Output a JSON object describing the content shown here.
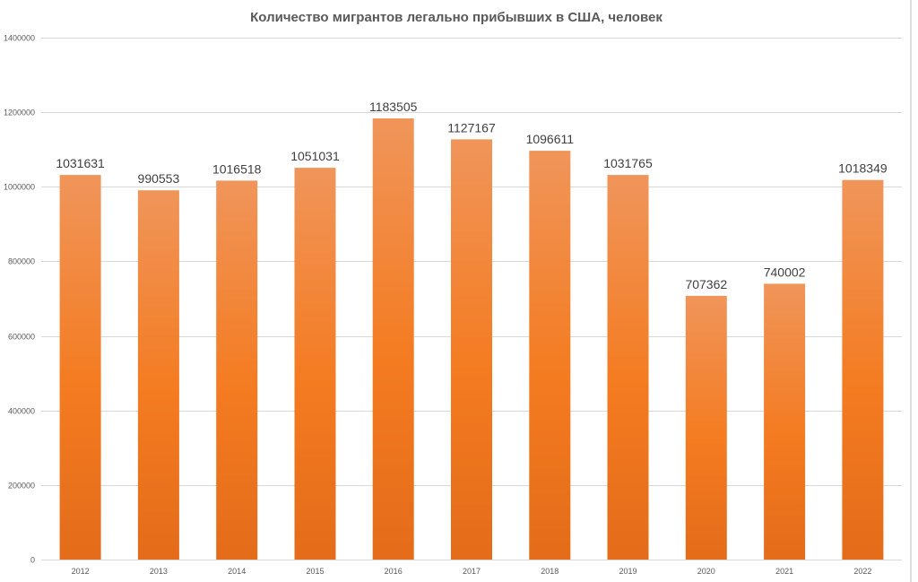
{
  "chart_data": {
    "type": "bar",
    "title": "Количество мигрантов легально прибывших в США, человек",
    "xlabel": "",
    "ylabel": "",
    "categories": [
      "2012",
      "2013",
      "2014",
      "2015",
      "2016",
      "2017",
      "2018",
      "2019",
      "2020",
      "2021",
      "2022"
    ],
    "values": [
      1031631,
      990553,
      1016518,
      1051031,
      1183505,
      1127167,
      1096611,
      1031765,
      707362,
      740002,
      1018349
    ],
    "data_labels": [
      "1031631",
      "990553",
      "1016518",
      "1051031",
      "1183505",
      "1127167",
      "1096611",
      "1031765",
      "707362",
      "740002",
      "1018349"
    ],
    "ylim": [
      0,
      1400000
    ],
    "yticks": [
      0,
      200000,
      400000,
      600000,
      800000,
      1000000,
      1200000,
      1400000
    ],
    "ytick_labels": [
      "0",
      "200000",
      "400000",
      "600000",
      "800000",
      "1000000",
      "1200000",
      "1400000"
    ],
    "grid": true,
    "legend": "none",
    "colors": {
      "bar_top": "#f0955a",
      "bar_mid": "#f47b20",
      "bar_bottom": "#e46c1a",
      "grid": "#d9d9d9",
      "text": "#595959"
    }
  }
}
